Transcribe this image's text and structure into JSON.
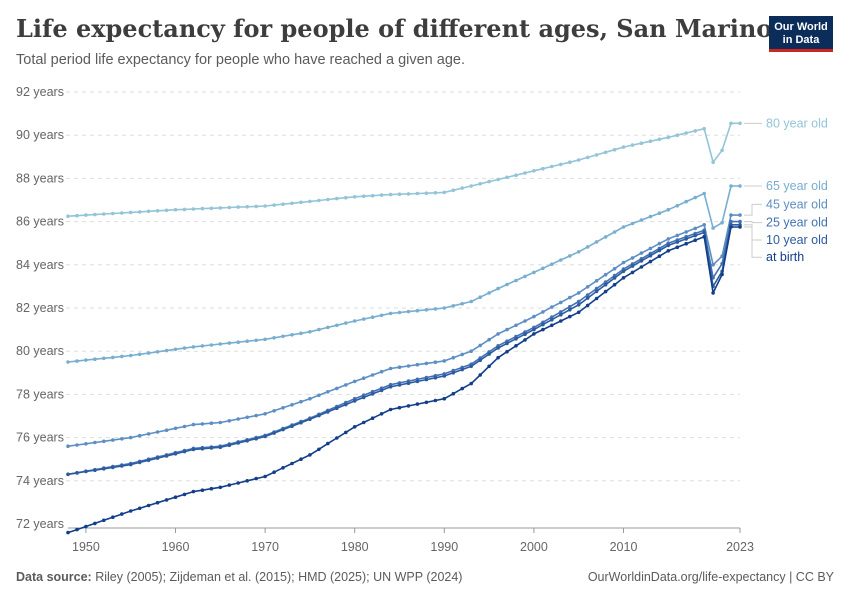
{
  "header": {
    "title": "Life expectancy for people of different ages, San Marino",
    "subtitle": "Total period life expectancy for people who have reached a given age.",
    "logo_line1": "Our World",
    "logo_line2": "in Data"
  },
  "footer": {
    "source_label": "Data source:",
    "source_text": " Riley (2005); Zijdeman et al. (2015); HMD (2025); UN WPP (2024)",
    "url_text": "OurWorldinData.org/life-expectancy | CC BY"
  },
  "chart_data": {
    "type": "line",
    "title": "Life expectancy for people of different ages, San Marino",
    "subtitle": "Total period life expectancy for people who have reached a given age.",
    "xlabel": "",
    "ylabel": "",
    "xlim": [
      1948,
      2023
    ],
    "ylim": [
      72,
      92
    ],
    "y_unit": "years",
    "yticks": [
      72,
      74,
      76,
      78,
      80,
      82,
      84,
      86,
      88,
      90,
      92
    ],
    "ytick_labels": [
      "72 years",
      "74 years",
      "76 years",
      "78 years",
      "80 years",
      "82 years",
      "84 years",
      "86 years",
      "88 years",
      "90 years",
      "92 years"
    ],
    "xticks": [
      1950,
      1960,
      1970,
      1980,
      1990,
      2000,
      2010,
      2023
    ],
    "xtick_labels": [
      "1950",
      "1960",
      "1970",
      "1980",
      "1990",
      "2000",
      "2010",
      "2023"
    ],
    "grid": "horizontal dashed",
    "legend": "right, labels at line ends",
    "series": [
      {
        "name": "80 year old",
        "color": "#93c4d8",
        "anchors": [
          [
            1948,
            86.25
          ],
          [
            1960,
            86.55
          ],
          [
            1970,
            86.72
          ],
          [
            1980,
            87.15
          ],
          [
            1984,
            87.25
          ],
          [
            1990,
            87.35
          ],
          [
            1995,
            87.85
          ],
          [
            2000,
            88.35
          ],
          [
            2005,
            88.85
          ],
          [
            2010,
            89.45
          ],
          [
            2015,
            89.9
          ],
          [
            2019,
            90.3
          ],
          [
            2020,
            88.75
          ],
          [
            2021,
            89.3
          ],
          [
            2022,
            90.55
          ],
          [
            2023,
            90.55
          ]
        ]
      },
      {
        "name": "65 year old",
        "color": "#78aed0",
        "anchors": [
          [
            1948,
            79.5
          ],
          [
            1955,
            79.8
          ],
          [
            1962,
            80.2
          ],
          [
            1970,
            80.55
          ],
          [
            1975,
            80.9
          ],
          [
            1980,
            81.4
          ],
          [
            1984,
            81.75
          ],
          [
            1990,
            82.0
          ],
          [
            1993,
            82.3
          ],
          [
            1996,
            82.9
          ],
          [
            2000,
            83.65
          ],
          [
            2005,
            84.6
          ],
          [
            2010,
            85.75
          ],
          [
            2015,
            86.55
          ],
          [
            2019,
            87.3
          ],
          [
            2020,
            85.7
          ],
          [
            2021,
            85.95
          ],
          [
            2022,
            87.65
          ],
          [
            2023,
            87.65
          ]
        ]
      },
      {
        "name": "45 year old",
        "color": "#5d8fc4",
        "anchors": [
          [
            1948,
            75.6
          ],
          [
            1955,
            76.0
          ],
          [
            1962,
            76.6
          ],
          [
            1965,
            76.7
          ],
          [
            1970,
            77.1
          ],
          [
            1975,
            77.8
          ],
          [
            1980,
            78.6
          ],
          [
            1984,
            79.2
          ],
          [
            1990,
            79.55
          ],
          [
            1993,
            80.0
          ],
          [
            1996,
            80.8
          ],
          [
            2000,
            81.6
          ],
          [
            2005,
            82.7
          ],
          [
            2010,
            84.1
          ],
          [
            2015,
            85.2
          ],
          [
            2019,
            85.85
          ],
          [
            2020,
            84.0
          ],
          [
            2021,
            84.4
          ],
          [
            2022,
            86.3
          ],
          [
            2023,
            86.3
          ]
        ]
      },
      {
        "name": "25 year old",
        "color": "#4271b3",
        "anchors": [
          [
            1948,
            74.3
          ],
          [
            1955,
            74.8
          ],
          [
            1962,
            75.5
          ],
          [
            1965,
            75.6
          ],
          [
            1970,
            76.1
          ],
          [
            1975,
            76.9
          ],
          [
            1980,
            77.8
          ],
          [
            1984,
            78.45
          ],
          [
            1990,
            78.95
          ],
          [
            1993,
            79.4
          ],
          [
            1996,
            80.25
          ],
          [
            2000,
            81.1
          ],
          [
            2005,
            82.3
          ],
          [
            2010,
            83.8
          ],
          [
            2015,
            85.0
          ],
          [
            2019,
            85.6
          ],
          [
            2020,
            83.4
          ],
          [
            2021,
            84.05
          ],
          [
            2022,
            86.0
          ],
          [
            2023,
            86.0
          ]
        ]
      },
      {
        "name": "10 year old",
        "color": "#2d5ba0",
        "anchors": [
          [
            1948,
            74.3
          ],
          [
            1955,
            74.75
          ],
          [
            1962,
            75.45
          ],
          [
            1965,
            75.55
          ],
          [
            1970,
            76.05
          ],
          [
            1975,
            76.85
          ],
          [
            1980,
            77.7
          ],
          [
            1984,
            78.35
          ],
          [
            1990,
            78.85
          ],
          [
            1993,
            79.3
          ],
          [
            1996,
            80.15
          ],
          [
            2000,
            81.0
          ],
          [
            2005,
            82.15
          ],
          [
            2010,
            83.7
          ],
          [
            2015,
            84.9
          ],
          [
            2019,
            85.5
          ],
          [
            2020,
            83.0
          ],
          [
            2021,
            83.7
          ],
          [
            2022,
            85.85
          ],
          [
            2023,
            85.85
          ]
        ]
      },
      {
        "name": "at birth",
        "color": "#123e8a",
        "anchors": [
          [
            1948,
            71.6
          ],
          [
            1955,
            72.6
          ],
          [
            1962,
            73.5
          ],
          [
            1965,
            73.7
          ],
          [
            1970,
            74.2
          ],
          [
            1975,
            75.2
          ],
          [
            1980,
            76.5
          ],
          [
            1984,
            77.3
          ],
          [
            1990,
            77.8
          ],
          [
            1993,
            78.5
          ],
          [
            1996,
            79.7
          ],
          [
            2000,
            80.8
          ],
          [
            2005,
            81.8
          ],
          [
            2010,
            83.4
          ],
          [
            2015,
            84.65
          ],
          [
            2019,
            85.3
          ],
          [
            2020,
            82.7
          ],
          [
            2021,
            83.55
          ],
          [
            2022,
            85.75
          ],
          [
            2023,
            85.75
          ]
        ]
      }
    ]
  }
}
